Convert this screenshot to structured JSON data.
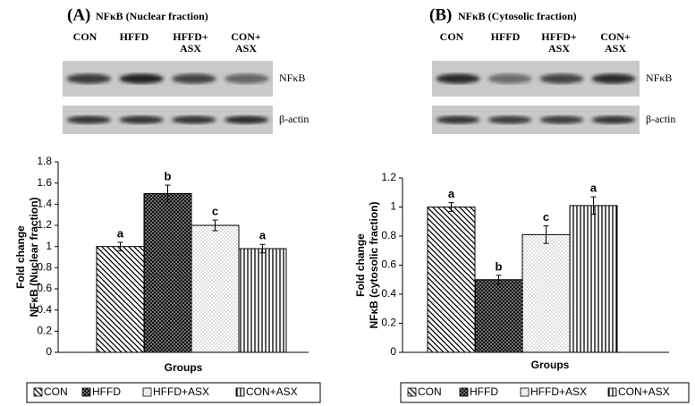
{
  "chart_data": [
    {
      "type": "bar",
      "panel": "(A)",
      "title": "NFκB (Nuclear fraction)",
      "lanes": [
        [
          "CON"
        ],
        [
          "HFFD"
        ],
        [
          "HFFD+",
          "ASX"
        ],
        [
          "CON+",
          "ASX"
        ]
      ],
      "blot_labels": [
        "NFκB",
        "β-actin"
      ],
      "categories": [
        "CON",
        "HFFD",
        "HFFD+ASX",
        "CON+ASX"
      ],
      "values": [
        1.0,
        1.5,
        1.2,
        0.98
      ],
      "errors": [
        0.04,
        0.08,
        0.05,
        0.04
      ],
      "annotations": [
        "a",
        "b",
        "c",
        "a"
      ],
      "patterns": [
        "diagonal",
        "dense-dots",
        "sparse-dots",
        "vertical"
      ],
      "ylabel": [
        "Fold change",
        "NFκB (Nuclear fraction)"
      ],
      "xlabel": "Groups",
      "ylim": [
        0,
        1.8
      ],
      "yticks": [
        0,
        0.2,
        0.4,
        0.6,
        0.8,
        1,
        1.2,
        1.4,
        1.6,
        1.8
      ],
      "grid": false
    },
    {
      "type": "bar",
      "panel": "(B)",
      "title": "NFκB (Cytosolic fraction)",
      "lanes": [
        [
          "CON"
        ],
        [
          "HFFD"
        ],
        [
          "HFFD+",
          "ASX"
        ],
        [
          "CON+",
          "ASX"
        ]
      ],
      "blot_labels": [
        "NFκB",
        "β-actin"
      ],
      "categories": [
        "CON",
        "HFFD",
        "HFFD+ASX",
        "CON+ASX"
      ],
      "values": [
        1.0,
        0.5,
        0.81,
        1.01
      ],
      "errors": [
        0.03,
        0.03,
        0.06,
        0.06
      ],
      "annotations": [
        "a",
        "b",
        "c",
        "a"
      ],
      "patterns": [
        "diagonal",
        "dense-dots",
        "sparse-dots",
        "vertical"
      ],
      "ylabel": [
        "Fold change",
        "NFκB (cytosolic fraction)"
      ],
      "xlabel": "Groups",
      "ylim": [
        0,
        1.2
      ],
      "yticks": [
        0,
        0.2,
        0.4,
        0.6,
        0.8,
        1,
        1.2
      ],
      "grid": false
    }
  ]
}
